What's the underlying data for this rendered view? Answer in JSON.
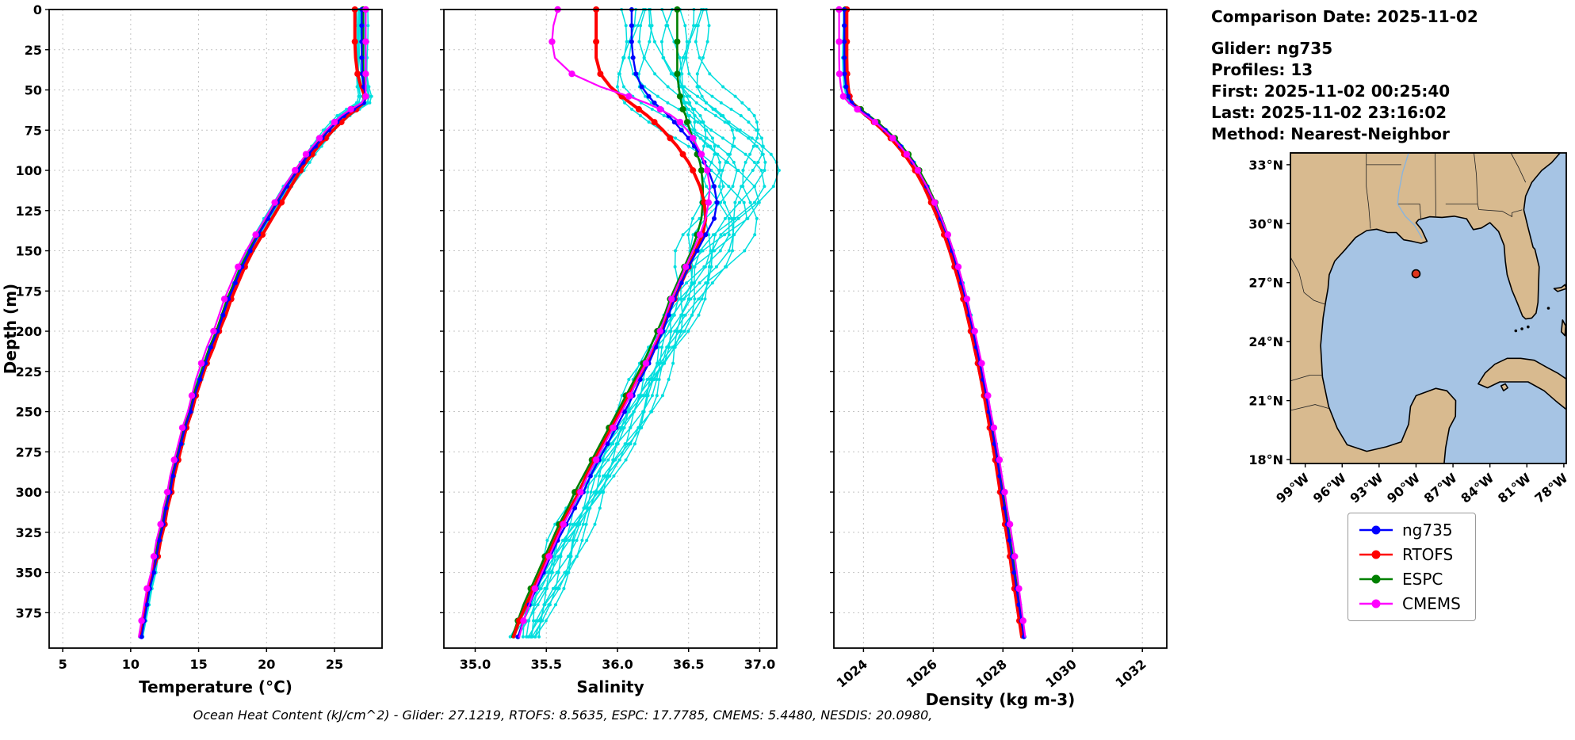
{
  "info_panel": {
    "comparison_date": "Comparison Date: 2025-11-02",
    "glider": "Glider: ng735",
    "profiles": "Profiles: 13",
    "first": "First: 2025-11-02 00:25:40",
    "last": "Last: 2025-11-02 23:16:02",
    "method": "Method: Nearest-Neighbor"
  },
  "footer": {
    "ohc_text": "Ocean Heat Content (kJ/cm^2) - Glider: 27.1219,  RTOFS: 8.5635,  ESPC: 17.7785,  CMEMS: 5.4480,  NESDIS: 20.0980,"
  },
  "legend": {
    "items": [
      {
        "label": "ng735",
        "color": "#0000ff"
      },
      {
        "label": "RTOFS",
        "color": "#ff0000"
      },
      {
        "label": "ESPC",
        "color": "#008000"
      },
      {
        "label": "CMEMS",
        "color": "#ff00ff"
      }
    ]
  },
  "map": {
    "ocean_color": "#a6c4e4",
    "land_color": "#d8ba8f",
    "marker": {
      "lon": -90.0,
      "lat": 27.45,
      "color": "#e0351b"
    },
    "lat_ticks": [
      [
        33,
        "33°N"
      ],
      [
        30,
        "30°N"
      ],
      [
        27,
        "27°N"
      ],
      [
        24,
        "24°N"
      ],
      [
        21,
        "21°N"
      ],
      [
        18,
        "18°N"
      ]
    ],
    "lon_ticks": [
      [
        -99,
        "99°W"
      ],
      [
        -96,
        "96°W"
      ],
      [
        -93,
        "93°W"
      ],
      [
        -90,
        "90°W"
      ],
      [
        -87,
        "87°W"
      ],
      [
        -84,
        "84°W"
      ],
      [
        -81,
        "81°W"
      ],
      [
        -78,
        "78°W"
      ]
    ]
  },
  "chart_data": {
    "type": "line",
    "description": "Glider vs model vertical ocean profiles versus depth",
    "depth_axis": {
      "label": "Depth (m)",
      "lim": [
        0,
        397
      ],
      "ticks": [
        0,
        25,
        50,
        75,
        100,
        125,
        150,
        175,
        200,
        225,
        250,
        275,
        300,
        325,
        350,
        375
      ]
    },
    "depths": [
      0,
      10,
      20,
      30,
      40,
      48,
      54,
      58,
      62,
      66,
      70,
      75,
      80,
      85,
      90,
      95,
      100,
      110,
      120,
      130,
      140,
      150,
      160,
      170,
      180,
      190,
      200,
      210,
      220,
      230,
      240,
      250,
      260,
      270,
      280,
      290,
      300,
      310,
      320,
      330,
      340,
      350,
      360,
      370,
      380,
      390
    ],
    "panels": [
      {
        "key": "temperature",
        "xlabel": "Temperature (°C)",
        "xlim": [
          4,
          28.5
        ],
        "xticks": [
          5,
          10,
          15,
          20,
          25
        ],
        "xtick_labels": [
          "5",
          "10",
          "15",
          "20",
          "25"
        ],
        "rotate_xticks": false,
        "series": [
          {
            "name": "ng735",
            "color": "#0000ff",
            "lw": 2.4,
            "marker_size": 3,
            "marker_every": 1,
            "values": [
              27.0,
              27.0,
              27.0,
              27.0,
              27.05,
              27.15,
              27.3,
              27.15,
              26.4,
              25.7,
              25.2,
              24.6,
              24.1,
              23.6,
              23.1,
              22.7,
              22.3,
              21.5,
              20.8,
              20.1,
              19.4,
              18.8,
              18.2,
              17.7,
              17.2,
              16.8,
              16.4,
              15.9,
              15.5,
              15.1,
              14.7,
              14.4,
              14.0,
              13.7,
              13.4,
              13.1,
              12.9,
              12.6,
              12.4,
              12.1,
              11.9,
              11.7,
              11.4,
              11.2,
              11.0,
              10.8
            ]
          },
          {
            "name": "RTOFS",
            "color": "#ff0000",
            "lw": 4,
            "marker_size": 4,
            "marker_every": 2,
            "values": [
              26.5,
              26.5,
              26.5,
              26.55,
              26.7,
              26.95,
              27.25,
              27.15,
              26.6,
              26.0,
              25.5,
              24.9,
              24.35,
              23.8,
              23.35,
              22.9,
              22.5,
              21.8,
              21.1,
              20.4,
              19.7,
              19.0,
              18.4,
              17.9,
              17.4,
              17.0,
              16.5,
              16.1,
              15.6,
              15.2,
              14.8,
              14.5,
              14.1,
              13.8,
              13.5,
              13.2,
              13.0,
              12.7,
              12.5,
              12.2,
              12.0,
              11.6,
              11.3,
              11.1,
              10.9,
              10.7
            ]
          },
          {
            "name": "ESPC",
            "color": "#008000",
            "lw": 2.6,
            "marker_size": 4,
            "marker_every": 2,
            "values": [
              27.1,
              27.1,
              27.1,
              27.1,
              27.1,
              27.2,
              27.25,
              27.1,
              26.3,
              25.6,
              25.1,
              24.5,
              24.0,
              23.5,
              23.0,
              22.6,
              22.2,
              21.4,
              20.7,
              20.0,
              19.3,
              18.7,
              18.1,
              17.6,
              17.1,
              16.7,
              16.3,
              15.8,
              15.4,
              15.0,
              14.6,
              14.3,
              13.9,
              13.6,
              13.3,
              13.0,
              12.8,
              12.5,
              12.3,
              12.0,
              11.8,
              11.6,
              11.3,
              11.1,
              10.9,
              10.7
            ]
          },
          {
            "name": "CMEMS",
            "color": "#ff00ff",
            "lw": 2.2,
            "marker_size": 4.2,
            "marker_every": 2,
            "values": [
              27.3,
              27.3,
              27.3,
              27.3,
              27.3,
              27.3,
              27.3,
              27.0,
              26.2,
              25.5,
              25.0,
              24.4,
              23.9,
              23.4,
              22.9,
              22.5,
              22.1,
              21.3,
              20.6,
              19.9,
              19.2,
              18.5,
              17.9,
              17.4,
              16.9,
              16.5,
              16.1,
              15.6,
              15.2,
              14.8,
              14.5,
              14.2,
              13.8,
              13.5,
              13.2,
              12.9,
              12.7,
              12.4,
              12.2,
              11.9,
              11.7,
              11.5,
              11.2,
              11.0,
              10.8,
              10.6
            ]
          }
        ]
      },
      {
        "key": "salinity",
        "xlabel": "Salinity",
        "xlim": [
          34.78,
          37.12
        ],
        "xticks": [
          35.0,
          35.5,
          36.0,
          36.5,
          37.0
        ],
        "xtick_labels": [
          "35.0",
          "35.5",
          "36.0",
          "36.5",
          "37.0"
        ],
        "rotate_xticks": false,
        "series": [
          {
            "name": "ng735",
            "color": "#0000ff",
            "lw": 2.4,
            "marker_size": 3,
            "marker_every": 1,
            "values": [
              36.1,
              36.1,
              36.1,
              36.11,
              36.13,
              36.17,
              36.22,
              36.26,
              36.31,
              36.36,
              36.4,
              36.45,
              36.5,
              36.54,
              36.58,
              36.61,
              36.64,
              36.68,
              36.7,
              36.68,
              36.62,
              36.56,
              36.5,
              36.45,
              36.4,
              36.36,
              36.32,
              36.27,
              36.22,
              36.16,
              36.11,
              36.05,
              35.99,
              35.93,
              35.87,
              35.81,
              35.76,
              35.7,
              35.64,
              35.58,
              35.53,
              35.48,
              35.43,
              35.38,
              35.34,
              35.3
            ]
          },
          {
            "name": "RTOFS",
            "color": "#ff0000",
            "lw": 4,
            "marker_size": 4,
            "marker_every": 2,
            "values": [
              35.85,
              35.85,
              35.85,
              35.85,
              35.88,
              35.95,
              36.03,
              36.09,
              36.15,
              36.21,
              36.26,
              36.32,
              36.37,
              36.42,
              36.46,
              36.5,
              36.53,
              36.58,
              36.61,
              36.62,
              36.6,
              36.55,
              36.5,
              36.45,
              36.4,
              36.35,
              36.31,
              36.26,
              36.2,
              36.14,
              36.08,
              36.02,
              35.96,
              35.9,
              35.84,
              35.78,
              35.73,
              35.67,
              35.61,
              35.56,
              35.51,
              35.46,
              35.41,
              35.36,
              35.31,
              35.27
            ]
          },
          {
            "name": "ESPC",
            "color": "#008000",
            "lw": 2.6,
            "marker_size": 4,
            "marker_every": 2,
            "values": [
              36.42,
              36.42,
              36.42,
              36.42,
              36.42,
              36.43,
              36.44,
              36.45,
              36.46,
              36.48,
              36.49,
              36.51,
              36.53,
              36.55,
              36.56,
              36.58,
              36.59,
              36.6,
              36.6,
              36.59,
              36.56,
              36.52,
              36.47,
              36.42,
              36.37,
              36.33,
              36.28,
              36.23,
              36.18,
              36.12,
              36.06,
              36.0,
              35.94,
              35.88,
              35.82,
              35.76,
              35.7,
              35.65,
              35.59,
              35.54,
              35.49,
              35.44,
              35.39,
              35.34,
              35.3,
              35.26
            ]
          },
          {
            "name": "CMEMS",
            "color": "#ff00ff",
            "lw": 2.2,
            "marker_size": 4.2,
            "marker_every": 2,
            "values": [
              35.58,
              35.55,
              35.54,
              35.56,
              35.68,
              35.88,
              36.08,
              36.2,
              36.3,
              36.38,
              36.44,
              36.49,
              36.53,
              36.56,
              36.59,
              36.61,
              36.63,
              36.65,
              36.64,
              36.62,
              36.58,
              36.53,
              36.48,
              36.43,
              36.38,
              36.34,
              36.3,
              36.25,
              36.2,
              36.14,
              36.09,
              36.03,
              35.97,
              35.91,
              35.85,
              35.79,
              35.74,
              35.68,
              35.62,
              35.57,
              35.52,
              35.47,
              35.42,
              35.38,
              35.34,
              35.31
            ]
          }
        ]
      },
      {
        "key": "density",
        "xlabel": "Density (kg m-3)",
        "xlim": [
          1023.15,
          1032.7
        ],
        "xticks": [
          1024,
          1026,
          1028,
          1030,
          1032
        ],
        "xtick_labels": [
          "1024",
          "1026",
          "1028",
          "1030",
          "1032"
        ],
        "rotate_xticks": true,
        "series": [
          {
            "name": "ng735",
            "color": "#0000ff",
            "lw": 2.4,
            "marker_size": 3,
            "marker_every": 1,
            "values": [
              1023.45,
              1023.45,
              1023.45,
              1023.45,
              1023.46,
              1023.5,
              1023.56,
              1023.66,
              1023.88,
              1024.12,
              1024.36,
              1024.62,
              1024.86,
              1025.06,
              1025.25,
              1025.41,
              1025.56,
              1025.81,
              1026.02,
              1026.21,
              1026.39,
              1026.54,
              1026.68,
              1026.81,
              1026.93,
              1027.04,
              1027.14,
              1027.24,
              1027.34,
              1027.43,
              1027.52,
              1027.6,
              1027.68,
              1027.76,
              1027.84,
              1027.91,
              1027.98,
              1028.05,
              1028.12,
              1028.19,
              1028.26,
              1028.32,
              1028.39,
              1028.46,
              1028.53,
              1028.6
            ]
          },
          {
            "name": "RTOFS",
            "color": "#ff0000",
            "lw": 4,
            "marker_size": 4,
            "marker_every": 2,
            "values": [
              1023.52,
              1023.52,
              1023.52,
              1023.52,
              1023.53,
              1023.56,
              1023.6,
              1023.68,
              1023.86,
              1024.08,
              1024.3,
              1024.55,
              1024.78,
              1024.98,
              1025.17,
              1025.33,
              1025.48,
              1025.73,
              1025.94,
              1026.13,
              1026.31,
              1026.47,
              1026.61,
              1026.74,
              1026.86,
              1026.97,
              1027.08,
              1027.18,
              1027.28,
              1027.37,
              1027.46,
              1027.54,
              1027.62,
              1027.7,
              1027.78,
              1027.85,
              1027.92,
              1027.99,
              1028.06,
              1028.13,
              1028.2,
              1028.26,
              1028.33,
              1028.4,
              1028.47,
              1028.54
            ]
          },
          {
            "name": "ESPC",
            "color": "#008000",
            "lw": 2.6,
            "marker_size": 4,
            "marker_every": 2,
            "values": [
              1023.48,
              1023.48,
              1023.48,
              1023.48,
              1023.49,
              1023.53,
              1023.58,
              1023.7,
              1023.92,
              1024.16,
              1024.4,
              1024.66,
              1024.9,
              1025.1,
              1025.29,
              1025.45,
              1025.6,
              1025.85,
              1026.06,
              1026.25,
              1026.42,
              1026.57,
              1026.71,
              1026.84,
              1026.96,
              1027.07,
              1027.17,
              1027.27,
              1027.37,
              1027.46,
              1027.55,
              1027.63,
              1027.71,
              1027.79,
              1027.86,
              1027.93,
              1028.0,
              1028.07,
              1028.14,
              1028.21,
              1028.28,
              1028.34,
              1028.41,
              1028.48,
              1028.55,
              1028.62
            ]
          },
          {
            "name": "CMEMS",
            "color": "#ff00ff",
            "lw": 2.2,
            "marker_size": 4.2,
            "marker_every": 2,
            "values": [
              1023.3,
              1023.3,
              1023.3,
              1023.3,
              1023.31,
              1023.35,
              1023.42,
              1023.58,
              1023.82,
              1024.08,
              1024.33,
              1024.6,
              1024.84,
              1025.05,
              1025.24,
              1025.41,
              1025.56,
              1025.82,
              1026.04,
              1026.24,
              1026.42,
              1026.58,
              1026.72,
              1026.85,
              1026.97,
              1027.08,
              1027.19,
              1027.29,
              1027.39,
              1027.48,
              1027.57,
              1027.65,
              1027.74,
              1027.82,
              1027.9,
              1027.97,
              1028.05,
              1028.12,
              1028.2,
              1028.27,
              1028.34,
              1028.4,
              1028.46,
              1028.52,
              1028.58,
              1028.64
            ]
          }
        ]
      }
    ],
    "individual_profiles": {
      "count": 13,
      "color": "#00dede",
      "phases": [
        0.3,
        0.9,
        1.5,
        2.1,
        2.7,
        3.3,
        3.9,
        4.5,
        5.1,
        5.7,
        0.6,
        1.8,
        4.2
      ],
      "offsets": {
        "temperature": [
          -0.4,
          -0.3,
          -0.2,
          -0.12,
          -0.05,
          0.03,
          0.1,
          0.18,
          0.25,
          0.32,
          0.4,
          0.15,
          -0.25
        ],
        "salinity": [
          -0.1,
          -0.03,
          0.05,
          0.12,
          0.18,
          0.25,
          0.32,
          0.38,
          0.45,
          0.52,
          0.08,
          0.28,
          0.48
        ],
        "density": [
          -0.08,
          -0.05,
          -0.03,
          -0.01,
          0.01,
          0.03,
          0.05,
          0.07,
          -0.06,
          0.02,
          -0.02,
          0.04,
          0.06
        ]
      }
    }
  }
}
